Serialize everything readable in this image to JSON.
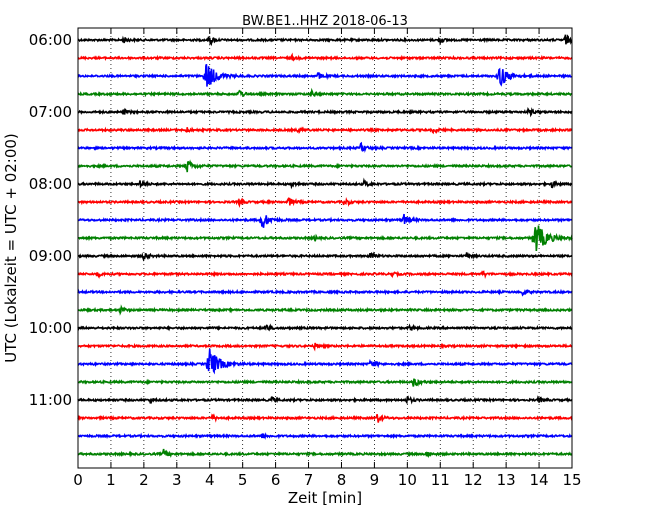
{
  "chart_data": {
    "type": "line",
    "title": "BW.BE1..HHZ 2018-06-13",
    "xlabel": "Zeit  [min]",
    "ylabel": "UTC (Lokalzeit = UTC + 02:00)",
    "xlim": [
      0,
      15
    ],
    "x_ticks": [
      0,
      1,
      2,
      3,
      4,
      5,
      6,
      7,
      8,
      9,
      10,
      11,
      12,
      13,
      14,
      15
    ],
    "x_tick_labels": [
      "0",
      "1",
      "2",
      "3",
      "4",
      "5",
      "6",
      "7",
      "8",
      "9",
      "10",
      "11",
      "12",
      "13",
      "14",
      "15"
    ],
    "y_tick_labels": [
      "06:00",
      "07:00",
      "08:00",
      "09:00",
      "10:00",
      "11:00"
    ],
    "grid": "vertical-dotted",
    "trace_colors": [
      "#000000",
      "#ff0000",
      "#0000ff",
      "#008000"
    ],
    "traces": [
      {
        "start": "06:00",
        "color": "#000000",
        "events": [
          {
            "t": 1.4,
            "a": 0.3
          },
          {
            "t": 4.0,
            "a": 0.5
          },
          {
            "t": 11.0,
            "a": 0.3
          },
          {
            "t": 14.8,
            "a": 0.6
          }
        ]
      },
      {
        "start": "06:15",
        "color": "#ff0000",
        "events": [
          {
            "t": 6.5,
            "a": 0.25
          }
        ]
      },
      {
        "start": "06:30",
        "color": "#0000ff",
        "events": [
          {
            "t": 3.9,
            "a": 1.6
          },
          {
            "t": 7.3,
            "a": 0.4
          },
          {
            "t": 12.8,
            "a": 1.3
          }
        ]
      },
      {
        "start": "06:45",
        "color": "#008000",
        "events": [
          {
            "t": 4.9,
            "a": 0.5
          },
          {
            "t": 7.1,
            "a": 0.3
          }
        ]
      },
      {
        "start": "07:00",
        "color": "#000000",
        "events": [
          {
            "t": 1.4,
            "a": 0.3
          },
          {
            "t": 13.7,
            "a": 0.4
          }
        ]
      },
      {
        "start": "07:15",
        "color": "#ff0000",
        "events": [
          {
            "t": 3.3,
            "a": 0.3
          },
          {
            "t": 6.7,
            "a": 0.3
          },
          {
            "t": 10.8,
            "a": 0.3
          }
        ]
      },
      {
        "start": "07:30",
        "color": "#0000ff",
        "events": [
          {
            "t": 8.6,
            "a": 0.5
          }
        ]
      },
      {
        "start": "07:45",
        "color": "#008000",
        "events": [
          {
            "t": 3.3,
            "a": 0.8
          }
        ]
      },
      {
        "start": "08:00",
        "color": "#000000",
        "events": [
          {
            "t": 1.9,
            "a": 0.4
          },
          {
            "t": 6.5,
            "a": 0.3
          },
          {
            "t": 8.7,
            "a": 0.4
          },
          {
            "t": 14.4,
            "a": 0.4
          }
        ]
      },
      {
        "start": "08:15",
        "color": "#ff0000",
        "events": [
          {
            "t": 4.9,
            "a": 0.3
          },
          {
            "t": 6.4,
            "a": 0.5
          },
          {
            "t": 8.1,
            "a": 0.4
          }
        ]
      },
      {
        "start": "08:30",
        "color": "#0000ff",
        "events": [
          {
            "t": 5.6,
            "a": 1.0
          },
          {
            "t": 9.9,
            "a": 0.6
          }
        ]
      },
      {
        "start": "08:45",
        "color": "#008000",
        "events": [
          {
            "t": 7.2,
            "a": 0.3
          },
          {
            "t": 13.9,
            "a": 1.8
          }
        ]
      },
      {
        "start": "09:00",
        "color": "#000000",
        "events": [
          {
            "t": 2.0,
            "a": 0.5
          },
          {
            "t": 8.9,
            "a": 0.4
          },
          {
            "t": 11.8,
            "a": 0.3
          }
        ]
      },
      {
        "start": "09:15",
        "color": "#ff0000",
        "events": [
          {
            "t": 0.6,
            "a": 0.3
          },
          {
            "t": 9.5,
            "a": 0.3
          },
          {
            "t": 12.3,
            "a": 0.3
          }
        ]
      },
      {
        "start": "09:30",
        "color": "#0000ff",
        "events": [
          {
            "t": 13.5,
            "a": 0.4
          }
        ]
      },
      {
        "start": "09:45",
        "color": "#008000",
        "events": [
          {
            "t": 1.3,
            "a": 0.4
          }
        ]
      },
      {
        "start": "10:00",
        "color": "#000000",
        "events": [
          {
            "t": 5.7,
            "a": 0.5
          },
          {
            "t": 10.1,
            "a": 0.3
          }
        ]
      },
      {
        "start": "10:15",
        "color": "#ff0000",
        "events": [
          {
            "t": 7.2,
            "a": 0.3
          }
        ]
      },
      {
        "start": "10:30",
        "color": "#0000ff",
        "events": [
          {
            "t": 4.0,
            "a": 1.7
          },
          {
            "t": 8.9,
            "a": 0.5
          }
        ]
      },
      {
        "start": "10:45",
        "color": "#008000",
        "events": [
          {
            "t": 10.2,
            "a": 0.6
          }
        ]
      },
      {
        "start": "11:00",
        "color": "#000000",
        "events": [
          {
            "t": 2.2,
            "a": 0.3
          },
          {
            "t": 5.9,
            "a": 0.3
          },
          {
            "t": 10.0,
            "a": 0.4
          },
          {
            "t": 14.0,
            "a": 0.3
          }
        ]
      },
      {
        "start": "11:15",
        "color": "#ff0000",
        "events": [
          {
            "t": 4.1,
            "a": 0.3
          },
          {
            "t": 9.1,
            "a": 0.5
          }
        ]
      },
      {
        "start": "11:30",
        "color": "#0000ff",
        "events": [
          {
            "t": 5.6,
            "a": 0.3
          }
        ]
      },
      {
        "start": "11:45",
        "color": "#008000",
        "events": [
          {
            "t": 2.6,
            "a": 0.5
          },
          {
            "t": 10.6,
            "a": 0.3
          }
        ]
      }
    ]
  }
}
